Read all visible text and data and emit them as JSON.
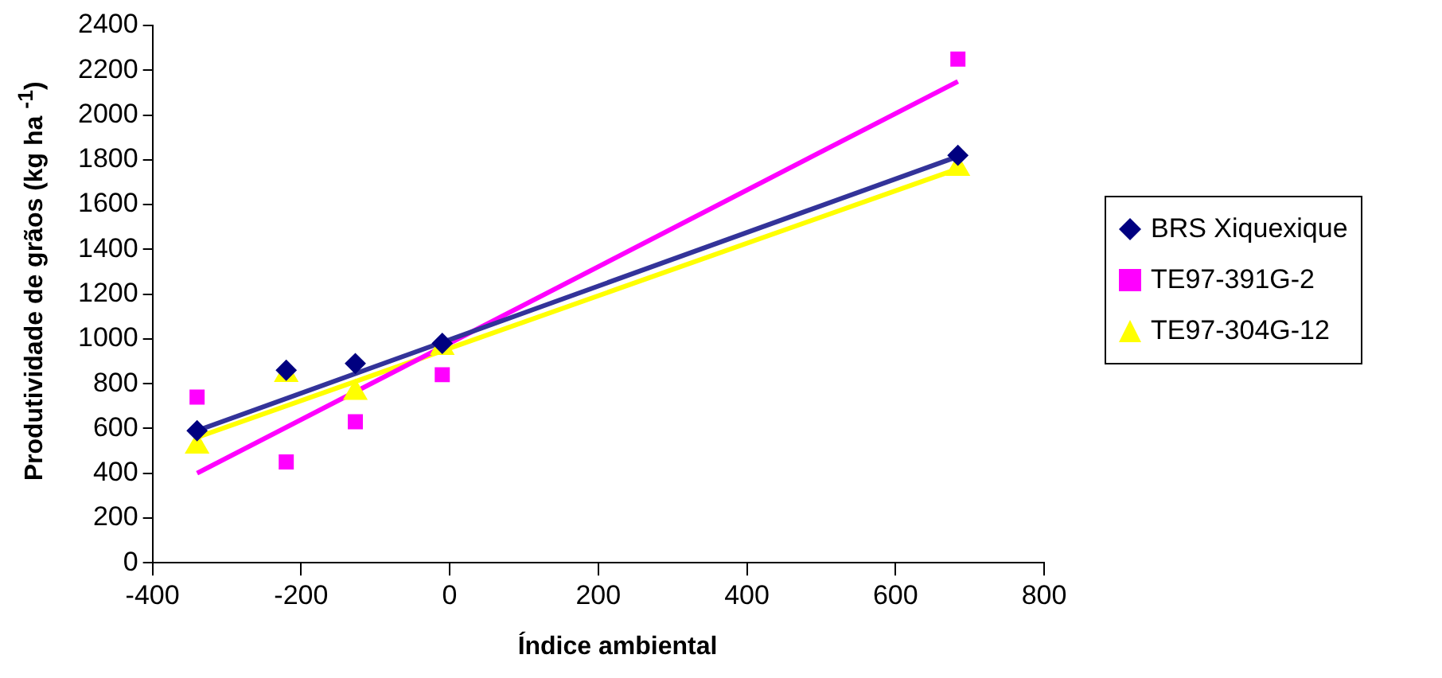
{
  "chart_data": {
    "type": "scatter",
    "xlabel": "Índice ambiental",
    "ylabel": "Produtividade de grãos (kg ha $^{-1}$)",
    "xlim": [
      -400,
      800
    ],
    "xticks": [
      -400,
      -200,
      0,
      200,
      400,
      600,
      800
    ],
    "ylim": [
      0,
      2400
    ],
    "yticks": [
      0,
      200,
      400,
      600,
      800,
      1000,
      1200,
      1400,
      1600,
      1800,
      2000,
      2200,
      2400
    ],
    "grid": false,
    "legend": "right",
    "series": [
      {
        "name": "BRS Xiquexique",
        "color": "#000080",
        "marker": "diamond",
        "x": [
          -340,
          -220,
          -127,
          -10,
          684
        ],
        "values": [
          590,
          860,
          890,
          980,
          1820
        ]
      },
      {
        "name": "TE97-391G-2",
        "color": "#ff00ff",
        "marker": "square",
        "x": [
          -340,
          -220,
          -127,
          -10,
          684
        ],
        "values": [
          740,
          450,
          630,
          840,
          2250
        ]
      },
      {
        "name": "TE97-304G-12",
        "color": "#ffff00",
        "marker": "triangle",
        "x": [
          -340,
          -220,
          -127,
          -10,
          684
        ],
        "values": [
          520,
          840,
          760,
          960,
          1760
        ]
      },
      {
        "type": "line",
        "color": "#333399",
        "marker": "none",
        "x": [
          -340,
          684
        ],
        "values": [
          590,
          1815
        ]
      },
      {
        "type": "line",
        "color": "#ff00ff",
        "marker": "none",
        "x": [
          -340,
          684
        ],
        "values": [
          400,
          2150
        ]
      },
      {
        "type": "line",
        "color": "#ffff00",
        "marker": "none",
        "x": [
          -340,
          684
        ],
        "values": [
          560,
          1760
        ]
      }
    ]
  }
}
